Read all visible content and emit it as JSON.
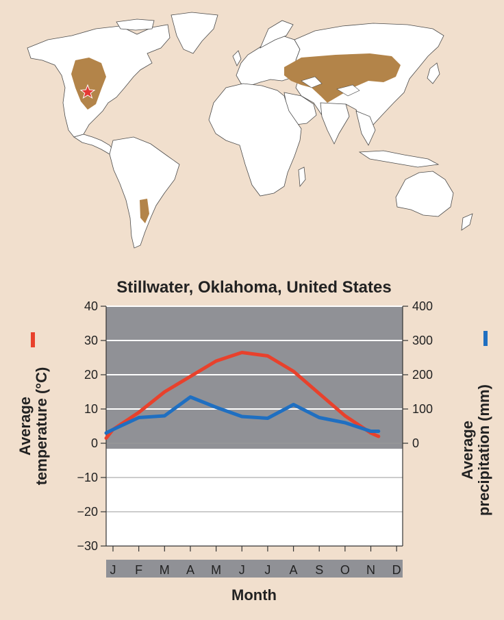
{
  "colors": {
    "background": "#f1dfcd",
    "grassland": "#b38449",
    "land": "#ffffff",
    "chart_dark": "#909196",
    "temperature_line": "#e8412c",
    "precipitation_line": "#1f6fc1",
    "star": "#e53935"
  },
  "map": {
    "marker_icon": "star-icon"
  },
  "chart_data": {
    "type": "line",
    "title": "Stillwater, Oklahoma, United States",
    "xlabel": "Month",
    "categories": [
      "J",
      "F",
      "M",
      "A",
      "M",
      "J",
      "J",
      "A",
      "S",
      "O",
      "N",
      "D"
    ],
    "y_left": {
      "label": "Average temperature (°C)",
      "label_line1": "Average",
      "label_line2": "temperature (°C)",
      "ylim": [
        -30,
        40
      ],
      "ticks": [
        40,
        30,
        20,
        10,
        0,
        -10,
        -20,
        -30
      ],
      "tick_labels": [
        "40",
        "30",
        "20",
        "10",
        "0",
        "−10",
        "−20",
        "−30"
      ]
    },
    "y_right": {
      "label": "Average precipitation (mm)",
      "label_line1": "Average",
      "label_line2": "precipitation (mm)",
      "ylim": [
        0,
        400
      ],
      "ticks": [
        400,
        300,
        200,
        100,
        0
      ],
      "tick_labels": [
        "400",
        "300",
        "200",
        "100",
        "0"
      ]
    },
    "x": [
      0.5,
      1,
      2,
      3,
      4,
      5,
      6,
      7,
      8,
      9,
      10,
      11,
      11.3
    ],
    "series": [
      {
        "key": "temperature",
        "axis": "left",
        "color": "#e8412c",
        "values": [
          1.5,
          4,
          9,
          15,
          19.5,
          24,
          26.5,
          25.5,
          21,
          14.5,
          8,
          3,
          2
        ]
      },
      {
        "key": "precipitation",
        "axis": "right",
        "color": "#1f6fc1",
        "values": [
          30,
          40,
          75,
          80,
          135,
          105,
          78,
          73,
          113,
          75,
          60,
          35,
          35
        ]
      }
    ],
    "grid": true
  }
}
